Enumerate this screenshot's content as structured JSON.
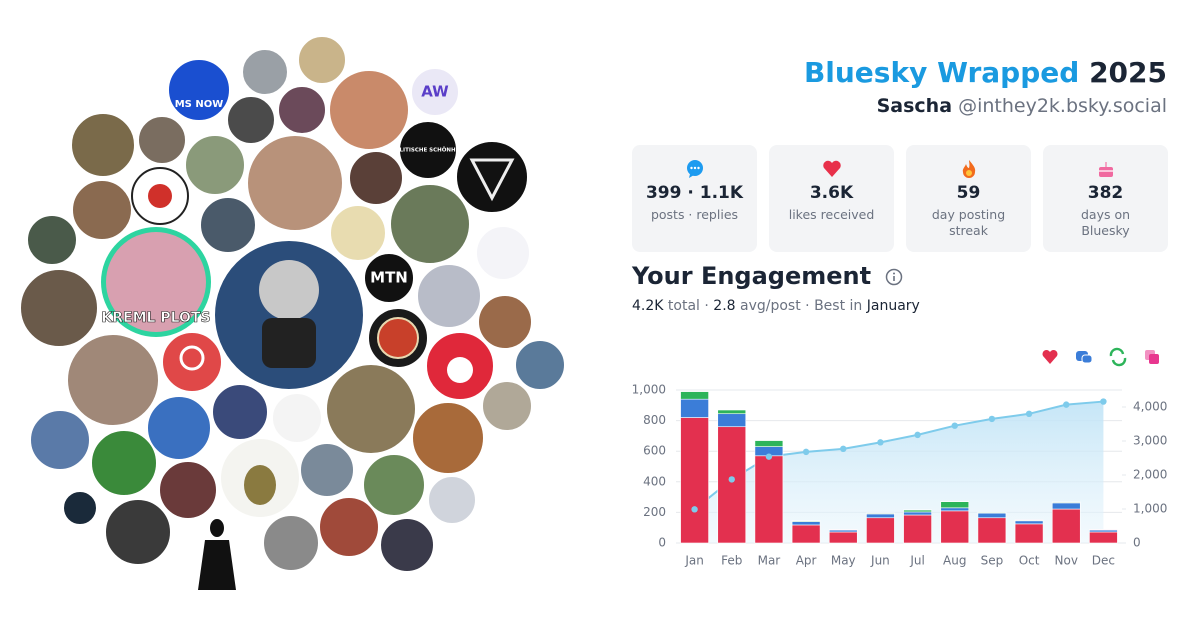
{
  "header": {
    "title": "Bluesky Wrapped",
    "year": "2025",
    "name": "Sascha",
    "handle": "@inthey2k.bsky.social"
  },
  "stats": [
    {
      "value": "399 · 1.1K",
      "label": "posts · replies"
    },
    {
      "value": "3.6K",
      "label": "likes received"
    },
    {
      "value": "59",
      "label": "day posting streak"
    },
    {
      "value": "382",
      "label": "days on Bluesky"
    }
  ],
  "engagement": {
    "title": "Your Engagement",
    "total": "4.2K",
    "total_label": "total",
    "separator": "·",
    "avg": "2.8",
    "avg_label": "avg/post",
    "best_label": "Best in",
    "best_month": "January"
  },
  "avatars": [
    "MS NOW",
    "AW",
    "POLITISCHE SCHÖNHEIT",
    "KREML PLOTS",
    "MTN"
  ],
  "chart_data": {
    "type": "bar",
    "stacked": true,
    "categories": [
      "Jan",
      "Feb",
      "Mar",
      "Apr",
      "May",
      "Jun",
      "Jul",
      "Aug",
      "Sep",
      "Oct",
      "Nov",
      "Dec"
    ],
    "series": [
      {
        "color": "#e3304f",
        "values": [
          820,
          760,
          570,
          118,
          72,
          165,
          183,
          210,
          165,
          125,
          222,
          72
        ]
      },
      {
        "color": "#3b7dd8",
        "values": [
          120,
          85,
          60,
          22,
          13,
          25,
          20,
          20,
          30,
          20,
          40,
          13
        ]
      },
      {
        "color": "#2db45a",
        "values": [
          50,
          25,
          40,
          5,
          3,
          5,
          13,
          40,
          5,
          5,
          5,
          3
        ]
      },
      {
        "color": "#e8368f",
        "values": [
          2,
          2,
          2,
          1,
          1,
          1,
          1,
          1,
          1,
          1,
          1,
          1
        ]
      },
      {
        "type": "line",
        "axis": "y2",
        "color": "#7ecbeb",
        "values": [
          990,
          1870,
          2540,
          2680,
          2770,
          2960,
          3180,
          3450,
          3650,
          3800,
          4070,
          4160
        ]
      }
    ],
    "ylim": [
      0,
      1000
    ],
    "yticks": [
      0,
      200,
      400,
      600,
      800,
      {
        "value": 1000,
        "label": "1,000"
      }
    ],
    "y2lim": [
      0,
      4500
    ],
    "y2ticks": [
      0,
      {
        "value": 1000,
        "label": "1,000"
      },
      {
        "value": 2000,
        "label": "2,000"
      },
      {
        "value": 3000,
        "label": "3,000"
      },
      {
        "value": 4000,
        "label": "4,000"
      }
    ],
    "grid": true
  }
}
